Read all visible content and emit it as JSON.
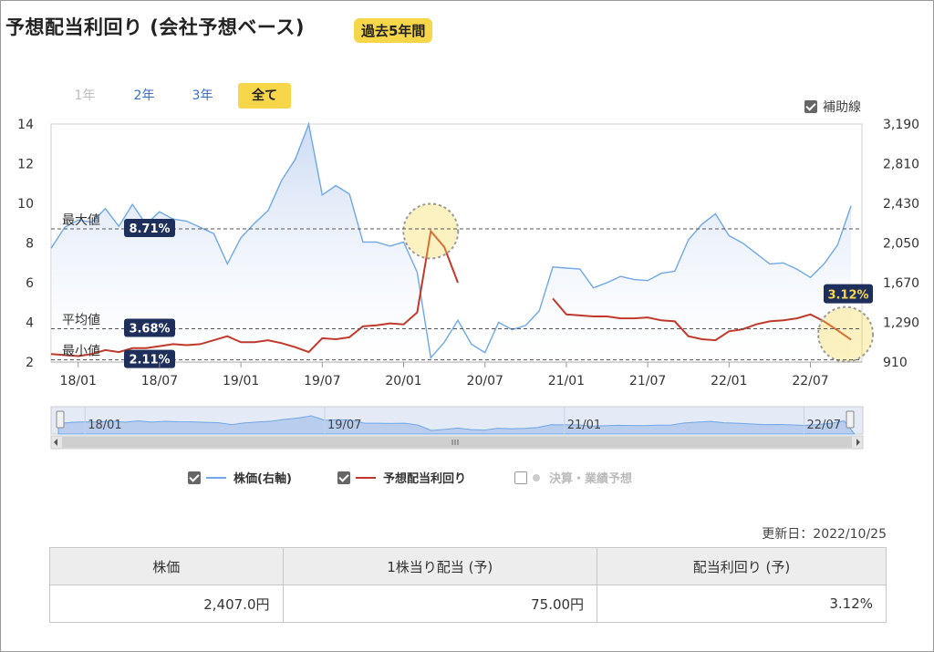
{
  "title": "予想配当利回り (会社予想ベース)",
  "period_badge": "過去5年間",
  "range_buttons": [
    {
      "label": "1年",
      "state": "disabled"
    },
    {
      "label": "2年",
      "state": "normal"
    },
    {
      "label": "3年",
      "state": "normal"
    },
    {
      "label": "全て",
      "state": "active"
    }
  ],
  "aux_lines_label": "補助線",
  "legend": {
    "price": "株価(右軸)",
    "yield": "予想配当利回り",
    "forecast": "決算・業績予想"
  },
  "updated_label": "更新日：2022/10/25",
  "table": {
    "headers": [
      "株価",
      "1株当り配当 (予)",
      "配当利回り (予)"
    ],
    "values": [
      "2,407.0円",
      "75.00円",
      "3.12%"
    ]
  },
  "colors": {
    "price_line": "#6fa8e6",
    "price_fill": "#c9d9f3",
    "yield_line": "#c0392b",
    "badge": "#f7d64a",
    "label_bg": "#1f2f5c"
  },
  "chart_data": {
    "type": "line",
    "x_ticks": [
      "18/01",
      "18/07",
      "19/01",
      "19/07",
      "20/01",
      "20/07",
      "21/01",
      "21/07",
      "22/01",
      "22/07"
    ],
    "navigator_ticks": [
      "18/01",
      "19/07",
      "21/01",
      "22/07"
    ],
    "left_axis": {
      "ticks": [
        "2",
        "4",
        "6",
        "8",
        "10",
        "12",
        "14"
      ],
      "ylim": [
        2,
        14
      ]
    },
    "right_axis": {
      "ticks": [
        "910",
        "1,290",
        "1,670",
        "2,050",
        "2,430",
        "2,810",
        "3,190"
      ],
      "ylim": [
        910,
        3190
      ]
    },
    "reference_lines": [
      {
        "label": "最大値",
        "value": 8.71,
        "display": "8.71%"
      },
      {
        "label": "平均値",
        "value": 3.68,
        "display": "3.68%"
      },
      {
        "label": "最小値",
        "value": 2.11,
        "display": "2.11%"
      }
    ],
    "current_value_label": "3.12%",
    "series": [
      {
        "name": "株価(右軸)",
        "axis": "right",
        "x": [
          "17/11",
          "17/12",
          "18/01",
          "18/02",
          "18/03",
          "18/04",
          "18/05",
          "18/06",
          "18/07",
          "18/08",
          "18/09",
          "18/10",
          "18/11",
          "18/12",
          "19/01",
          "19/02",
          "19/03",
          "19/04",
          "19/05",
          "19/06",
          "19/07",
          "19/08",
          "19/09",
          "19/10",
          "19/11",
          "19/12",
          "20/01",
          "20/02",
          "20/03",
          "20/04",
          "20/05",
          "20/06",
          "20/07",
          "20/08",
          "20/09",
          "20/10",
          "20/11",
          "20/12",
          "21/01",
          "21/02",
          "21/03",
          "21/04",
          "21/05",
          "21/06",
          "21/07",
          "21/08",
          "21/09",
          "21/10",
          "21/11",
          "21/12",
          "22/01",
          "22/02",
          "22/03",
          "22/04",
          "22/05",
          "22/06",
          "22/07",
          "22/08",
          "22/09",
          "22/10"
        ],
        "values": [
          2000,
          2200,
          2270,
          2250,
          2380,
          2210,
          2420,
          2230,
          2350,
          2280,
          2260,
          2200,
          2140,
          1850,
          2100,
          2240,
          2360,
          2650,
          2850,
          3190,
          2510,
          2600,
          2520,
          2060,
          2060,
          2020,
          2060,
          1770,
          950,
          1100,
          1310,
          1080,
          1000,
          1290,
          1220,
          1260,
          1400,
          1820,
          1810,
          1800,
          1620,
          1670,
          1730,
          1700,
          1690,
          1760,
          1780,
          2080,
          2230,
          2330,
          2120,
          2050,
          1950,
          1850,
          1860,
          1800,
          1720,
          1850,
          2030,
          2407
        ]
      },
      {
        "name": "予想配当利回り",
        "axis": "left",
        "x": [
          "17/11",
          "17/12",
          "18/01",
          "18/02",
          "18/03",
          "18/04",
          "18/05",
          "18/06",
          "18/07",
          "18/08",
          "18/09",
          "18/10",
          "18/11",
          "18/12",
          "19/01",
          "19/02",
          "19/03",
          "19/04",
          "19/05",
          "19/06",
          "19/07",
          "19/08",
          "19/09",
          "19/10",
          "19/11",
          "19/12",
          "20/01",
          "20/02",
          "20/03",
          "20/04",
          "20/05",
          "20/06",
          "20/07",
          "20/08",
          "20/09",
          "20/10",
          "20/11",
          "20/12",
          "21/01",
          "21/02",
          "21/03",
          "21/04",
          "21/05",
          "21/06",
          "21/07",
          "21/08",
          "21/09",
          "21/10",
          "21/11",
          "21/12",
          "22/01",
          "22/02",
          "22/03",
          "22/04",
          "22/05",
          "22/06",
          "22/07",
          "22/08",
          "22/09",
          "22/10"
        ],
        "values": [
          2.4,
          2.35,
          2.3,
          2.4,
          2.6,
          2.5,
          2.7,
          2.7,
          2.8,
          2.9,
          2.85,
          2.9,
          3.1,
          3.3,
          3.0,
          3.0,
          3.1,
          2.95,
          2.75,
          2.5,
          3.2,
          3.15,
          3.25,
          3.8,
          3.85,
          3.95,
          3.9,
          4.5,
          8.6,
          7.8,
          6.0,
          null,
          null,
          null,
          null,
          null,
          null,
          5.2,
          4.4,
          4.35,
          4.3,
          4.3,
          4.2,
          4.2,
          4.25,
          4.1,
          4.05,
          3.3,
          3.15,
          3.1,
          3.55,
          3.65,
          3.9,
          4.05,
          4.1,
          4.2,
          4.4,
          4.05,
          3.6,
          3.12
        ]
      }
    ]
  }
}
